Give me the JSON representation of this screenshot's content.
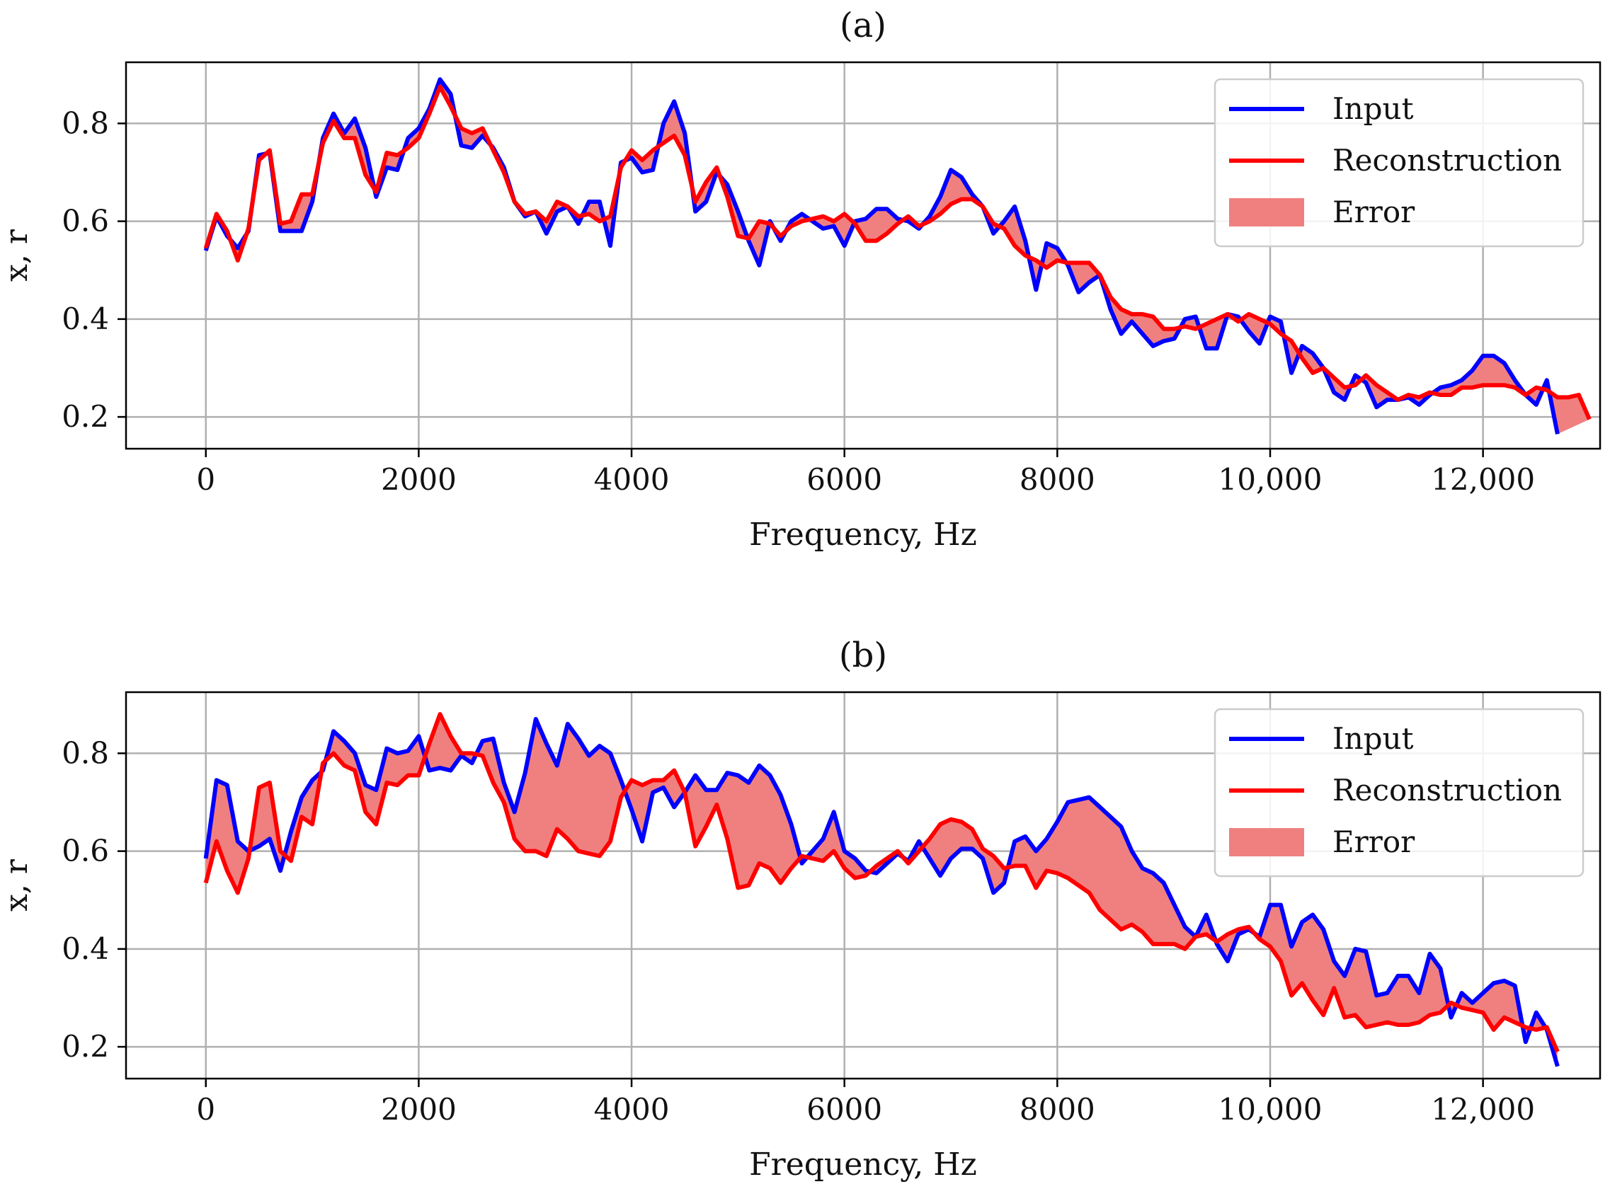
{
  "chart_data": [
    {
      "type": "line",
      "title": "(a)",
      "xlabel": "Frequency, Hz",
      "ylabel": "x, r",
      "xlim": [
        -750,
        13100
      ],
      "ylim": [
        0.135,
        0.925
      ],
      "xticks": [
        0,
        2000,
        4000,
        6000,
        8000,
        10000,
        12000
      ],
      "xtick_labels": [
        "0",
        "2000",
        "4000",
        "6000",
        "8000",
        "10,000",
        "12,000"
      ],
      "yticks": [
        0.2,
        0.4,
        0.6,
        0.8
      ],
      "ytick_labels": [
        "0.2",
        "0.4",
        "0.6",
        "0.8"
      ],
      "grid": true,
      "legend_position": "top-right",
      "legend": [
        "Input",
        "Reconstruction",
        "Error"
      ],
      "x_step": 100,
      "series": [
        {
          "name": "Input",
          "color": "#0000ff",
          "values": [
            0.54,
            0.61,
            0.57,
            0.545,
            0.58,
            0.735,
            0.74,
            0.58,
            0.58,
            0.58,
            0.64,
            0.77,
            0.82,
            0.78,
            0.81,
            0.75,
            0.65,
            0.71,
            0.705,
            0.77,
            0.79,
            0.83,
            0.89,
            0.86,
            0.755,
            0.75,
            0.775,
            0.75,
            0.71,
            0.64,
            0.61,
            0.62,
            0.575,
            0.62,
            0.63,
            0.595,
            0.64,
            0.64,
            0.55,
            0.72,
            0.73,
            0.7,
            0.705,
            0.8,
            0.845,
            0.78,
            0.62,
            0.64,
            0.7,
            0.675,
            0.62,
            0.56,
            0.51,
            0.6,
            0.56,
            0.6,
            0.615,
            0.6,
            0.585,
            0.59,
            0.55,
            0.6,
            0.605,
            0.625,
            0.625,
            0.605,
            0.6,
            0.585,
            0.61,
            0.65,
            0.705,
            0.69,
            0.655,
            0.63,
            0.575,
            0.6,
            0.63,
            0.56,
            0.46,
            0.555,
            0.545,
            0.51,
            0.455,
            0.475,
            0.49,
            0.42,
            0.37,
            0.395,
            0.37,
            0.345,
            0.355,
            0.36,
            0.4,
            0.405,
            0.34,
            0.34,
            0.41,
            0.405,
            0.375,
            0.35,
            0.405,
            0.395,
            0.29,
            0.345,
            0.33,
            0.3,
            0.25,
            0.235,
            0.285,
            0.27,
            0.22,
            0.235,
            0.235,
            0.24,
            0.225,
            0.245,
            0.26,
            0.265,
            0.275,
            0.295,
            0.325,
            0.325,
            0.31,
            0.275,
            0.245,
            0.225,
            0.275,
            0.165
          ]
        },
        {
          "name": "Reconstruction",
          "color": "#ff0000",
          "values": [
            0.545,
            0.615,
            0.58,
            0.52,
            0.585,
            0.725,
            0.745,
            0.595,
            0.6,
            0.655,
            0.655,
            0.76,
            0.805,
            0.77,
            0.77,
            0.695,
            0.66,
            0.74,
            0.735,
            0.75,
            0.77,
            0.82,
            0.875,
            0.835,
            0.79,
            0.78,
            0.79,
            0.745,
            0.7,
            0.64,
            0.615,
            0.62,
            0.6,
            0.64,
            0.63,
            0.61,
            0.615,
            0.6,
            0.61,
            0.71,
            0.745,
            0.725,
            0.745,
            0.76,
            0.775,
            0.735,
            0.64,
            0.68,
            0.71,
            0.65,
            0.57,
            0.565,
            0.6,
            0.595,
            0.57,
            0.59,
            0.6,
            0.605,
            0.61,
            0.6,
            0.615,
            0.595,
            0.56,
            0.56,
            0.575,
            0.595,
            0.61,
            0.59,
            0.6,
            0.615,
            0.635,
            0.645,
            0.645,
            0.63,
            0.595,
            0.585,
            0.55,
            0.53,
            0.52,
            0.505,
            0.52,
            0.515,
            0.515,
            0.515,
            0.49,
            0.445,
            0.42,
            0.41,
            0.41,
            0.405,
            0.38,
            0.38,
            0.385,
            0.38,
            0.39,
            0.4,
            0.41,
            0.395,
            0.41,
            0.4,
            0.39,
            0.37,
            0.355,
            0.32,
            0.29,
            0.3,
            0.28,
            0.26,
            0.265,
            0.285,
            0.265,
            0.25,
            0.235,
            0.245,
            0.24,
            0.25,
            0.245,
            0.245,
            0.26,
            0.26,
            0.265,
            0.265,
            0.265,
            0.26,
            0.245,
            0.26,
            0.255,
            0.24,
            0.24,
            0.245,
            0.195
          ]
        }
      ]
    },
    {
      "type": "line",
      "title": "(b)",
      "xlabel": "Frequency, Hz",
      "ylabel": "x, r",
      "xlim": [
        -750,
        13100
      ],
      "ylim": [
        0.135,
        0.925
      ],
      "xticks": [
        0,
        2000,
        4000,
        6000,
        8000,
        10000,
        12000
      ],
      "xtick_labels": [
        "0",
        "2000",
        "4000",
        "6000",
        "8000",
        "10,000",
        "12,000"
      ],
      "yticks": [
        0.2,
        0.4,
        0.6,
        0.8
      ],
      "ytick_labels": [
        "0.2",
        "0.4",
        "0.6",
        "0.8"
      ],
      "grid": true,
      "legend_position": "top-right",
      "legend": [
        "Input",
        "Reconstruction",
        "Error"
      ],
      "x_step": 100,
      "series": [
        {
          "name": "Input",
          "color": "#0000ff",
          "values": [
            0.585,
            0.745,
            0.735,
            0.62,
            0.6,
            0.61,
            0.625,
            0.56,
            0.64,
            0.71,
            0.745,
            0.765,
            0.845,
            0.825,
            0.8,
            0.735,
            0.725,
            0.81,
            0.8,
            0.805,
            0.835,
            0.765,
            0.77,
            0.765,
            0.795,
            0.78,
            0.825,
            0.83,
            0.74,
            0.68,
            0.76,
            0.87,
            0.82,
            0.775,
            0.86,
            0.83,
            0.795,
            0.815,
            0.8,
            0.745,
            0.685,
            0.62,
            0.72,
            0.73,
            0.69,
            0.72,
            0.755,
            0.725,
            0.725,
            0.76,
            0.755,
            0.74,
            0.775,
            0.755,
            0.715,
            0.655,
            0.575,
            0.6,
            0.625,
            0.68,
            0.6,
            0.585,
            0.56,
            0.555,
            0.575,
            0.595,
            0.58,
            0.62,
            0.585,
            0.55,
            0.585,
            0.605,
            0.605,
            0.585,
            0.515,
            0.535,
            0.62,
            0.63,
            0.6,
            0.625,
            0.66,
            0.7,
            0.705,
            0.71,
            0.69,
            0.67,
            0.65,
            0.6,
            0.565,
            0.555,
            0.535,
            0.49,
            0.445,
            0.425,
            0.47,
            0.41,
            0.375,
            0.43,
            0.44,
            0.425,
            0.49,
            0.49,
            0.405,
            0.455,
            0.47,
            0.44,
            0.375,
            0.345,
            0.4,
            0.395,
            0.305,
            0.31,
            0.345,
            0.345,
            0.31,
            0.39,
            0.36,
            0.26,
            0.31,
            0.29,
            0.31,
            0.33,
            0.335,
            0.325,
            0.21,
            0.27,
            0.235,
            0.16
          ]
        },
        {
          "name": "Reconstruction",
          "color": "#ff0000",
          "values": [
            0.535,
            0.62,
            0.56,
            0.515,
            0.585,
            0.73,
            0.74,
            0.6,
            0.58,
            0.67,
            0.655,
            0.78,
            0.8,
            0.775,
            0.765,
            0.68,
            0.655,
            0.74,
            0.735,
            0.755,
            0.755,
            0.82,
            0.88,
            0.835,
            0.8,
            0.8,
            0.795,
            0.74,
            0.7,
            0.625,
            0.6,
            0.6,
            0.59,
            0.645,
            0.625,
            0.6,
            0.595,
            0.59,
            0.62,
            0.71,
            0.745,
            0.735,
            0.745,
            0.745,
            0.765,
            0.72,
            0.61,
            0.65,
            0.695,
            0.625,
            0.525,
            0.53,
            0.575,
            0.565,
            0.535,
            0.565,
            0.59,
            0.585,
            0.58,
            0.6,
            0.565,
            0.545,
            0.55,
            0.57,
            0.585,
            0.6,
            0.575,
            0.6,
            0.625,
            0.655,
            0.665,
            0.66,
            0.645,
            0.605,
            0.59,
            0.565,
            0.57,
            0.57,
            0.525,
            0.56,
            0.555,
            0.545,
            0.53,
            0.515,
            0.48,
            0.46,
            0.44,
            0.45,
            0.435,
            0.41,
            0.41,
            0.41,
            0.4,
            0.425,
            0.43,
            0.415,
            0.43,
            0.44,
            0.445,
            0.42,
            0.405,
            0.375,
            0.305,
            0.33,
            0.295,
            0.265,
            0.32,
            0.26,
            0.265,
            0.24,
            0.245,
            0.25,
            0.245,
            0.245,
            0.25,
            0.265,
            0.27,
            0.29,
            0.28,
            0.275,
            0.27,
            0.235,
            0.26,
            0.25,
            0.24,
            0.235,
            0.24,
            0.19
          ]
        }
      ]
    }
  ]
}
